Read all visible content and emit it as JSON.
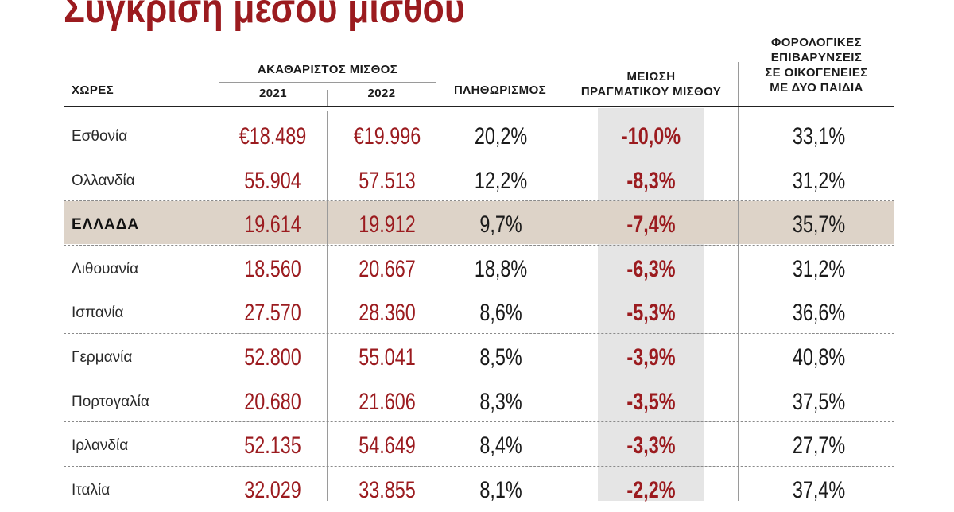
{
  "title": "Σύγκριση μέσου μισθού",
  "headers": {
    "countries": "ΧΩΡΕΣ",
    "gross_salary": "ΑΚΑΘΑΡΙΣΤΟΣ ΜΙΣΘΟΣ",
    "year_2021": "2021",
    "year_2022": "2022",
    "inflation": "ΠΛΗΘΩΡΙΣΜΟΣ",
    "real_salary_drop_line1": "ΜΕΙΩΣΗ",
    "real_salary_drop_line2": "ΠΡΑΓΜΑΤΙΚΟΥ ΜΙΣΘΟΥ",
    "tax_line1": "ΦΟΡΟΛΟΓΙΚΕΣ",
    "tax_line2": "ΕΠΙΒΑΡΥΝΣΕΙΣ",
    "tax_line3": "ΣΕ ΟΙΚΟΓΕΝΕΙΕΣ",
    "tax_line4": "ΜΕ ΔΥΟ ΠΑΙΔΙΑ"
  },
  "rows": [
    {
      "country": "Εσθονία",
      "s2021": "€18.489",
      "s2022": "€19.996",
      "inflation": "20,2%",
      "reduction": "-10,0%",
      "tax": "33,1%"
    },
    {
      "country": "Ολλανδία",
      "s2021": "55.904",
      "s2022": "57.513",
      "inflation": "12,2%",
      "reduction": "-8,3%",
      "tax": "31,2%"
    },
    {
      "country": "ΕΛΛΑΔΑ",
      "s2021": "19.614",
      "s2022": "19.912",
      "inflation": "9,7%",
      "reduction": "-7,4%",
      "tax": "35,7%"
    },
    {
      "country": "Λιθουανία",
      "s2021": "18.560",
      "s2022": "20.667",
      "inflation": "18,8%",
      "reduction": "-6,3%",
      "tax": "31,2%"
    },
    {
      "country": "Ισπανία",
      "s2021": "27.570",
      "s2022": "28.360",
      "inflation": "8,6%",
      "reduction": "-5,3%",
      "tax": "36,6%"
    },
    {
      "country": "Γερμανία",
      "s2021": "52.800",
      "s2022": "55.041",
      "inflation": "8,5%",
      "reduction": "-3,9%",
      "tax": "40,8%"
    },
    {
      "country": "Πορτογαλία",
      "s2021": "20.680",
      "s2022": "21.606",
      "inflation": "8,3%",
      "reduction": "-3,5%",
      "tax": "37,5%"
    },
    {
      "country": "Ιρλανδία",
      "s2021": "52.135",
      "s2022": "54.649",
      "inflation": "8,4%",
      "reduction": "-3,3%",
      "tax": "27,7%"
    },
    {
      "country": "Ιταλία",
      "s2021": "32.029",
      "s2022": "33.855",
      "inflation": "8,1%",
      "reduction": "-2,2%",
      "tax": "37,4%"
    }
  ],
  "colors": {
    "accent_red": "#9b1b1f",
    "greece_row": "#ddd3c8",
    "highlight_col": "#e5e5e5"
  }
}
